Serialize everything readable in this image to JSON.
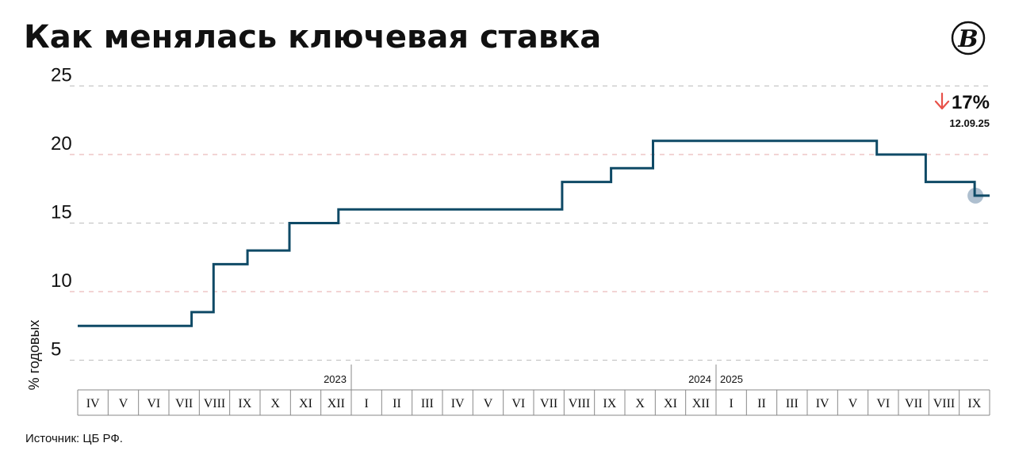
{
  "title": "Как менялась ключевая ставка",
  "source": "Источник: ЦБ РФ.",
  "logo": {
    "icon": "publisher-logo-icon",
    "letter": "B"
  },
  "callout": {
    "value": "17%",
    "date": "12.09.25",
    "arrow_icon": "arrow-down-icon",
    "arrow_color": "#e8524a"
  },
  "colors": {
    "line": "#0f4a66",
    "marker": "#aebfcf",
    "grid_major": "#bdbdbd",
    "grid_minor": "#e6a8a8"
  },
  "chart_data": {
    "type": "line",
    "step": true,
    "title": "Как менялась ключевая ставка",
    "xlabel": "",
    "ylabel": "% годовых",
    "ylim": [
      0,
      25
    ],
    "yticks": [
      5,
      10,
      15,
      20,
      25
    ],
    "grid": true,
    "months": [
      "IV",
      "V",
      "VI",
      "VII",
      "VIII",
      "IX",
      "X",
      "XI",
      "XII",
      "I",
      "II",
      "III",
      "IV",
      "V",
      "VI",
      "VII",
      "VIII",
      "IX",
      "X",
      "XI",
      "XII",
      "I",
      "II",
      "III",
      "IV",
      "V",
      "VI",
      "VII",
      "VIII",
      "IX"
    ],
    "year_labels": [
      {
        "label": "2023",
        "month_index": 8,
        "align": "end"
      },
      {
        "label": "2024",
        "month_index": 20,
        "align": "end"
      },
      {
        "label": "2025",
        "month_index": 21,
        "align": "start"
      }
    ],
    "x_start": "2023-04-01",
    "x_end": "2025-09-30",
    "series": [
      {
        "x": [
          "2023-04-01",
          "2023-07-24",
          "2023-08-15",
          "2023-09-18",
          "2023-10-30",
          "2023-12-18",
          "2024-07-29",
          "2024-09-16",
          "2024-10-28",
          "2025-06-09",
          "2025-07-28",
          "2025-09-15",
          "2025-09-30"
        ],
        "values": [
          7.5,
          8.5,
          12,
          13,
          15,
          16,
          18,
          19,
          21,
          20,
          18,
          17,
          17
        ]
      }
    ],
    "last_point": {
      "date": "2025-09-15",
      "value": 17
    }
  }
}
